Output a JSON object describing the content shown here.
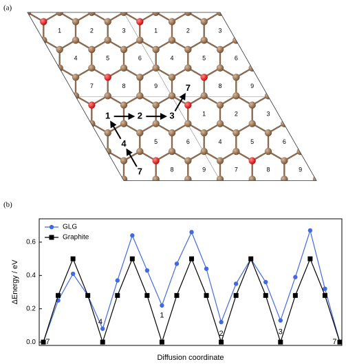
{
  "panel_a": {
    "label": "(a)",
    "cell_numbers": [
      "1",
      "2",
      "3",
      "4",
      "5",
      "6",
      "7",
      "8",
      "9"
    ],
    "path_labels": [
      "1",
      "2",
      "3",
      "4",
      "7"
    ]
  },
  "panel_b_label": "(b)",
  "chart_data": {
    "type": "line",
    "xlabel": "Diffusion coordinate",
    "ylabel": "ΔEnergy / eV",
    "x": [
      0,
      1,
      2,
      3,
      4,
      5,
      6,
      7,
      8,
      9,
      10,
      11,
      12,
      13,
      14,
      15,
      16,
      17,
      18,
      19,
      20
    ],
    "series": [
      {
        "name": "GLG",
        "color": "#4169e1",
        "marker": "circle",
        "values": [
          0,
          0.25,
          0.41,
          0.28,
          0.08,
          0.37,
          0.64,
          0.43,
          0.22,
          0.47,
          0.66,
          0.44,
          0.12,
          0.35,
          0.5,
          0.36,
          0.13,
          0.39,
          0.67,
          0.32,
          0
        ]
      },
      {
        "name": "Graphite",
        "color": "#000000",
        "marker": "square",
        "values": [
          0,
          0.28,
          0.5,
          0.28,
          0,
          0.28,
          0.5,
          0.28,
          0,
          0.28,
          0.5,
          0.28,
          0,
          0.28,
          0.5,
          0.28,
          0,
          0.28,
          0.5,
          0.28,
          0
        ]
      }
    ],
    "xlim": [
      -0.28,
      20.14
    ],
    "ylim": [
      -0.02,
      0.74
    ],
    "yticks": [
      {
        "value": 0,
        "label": "0.0"
      },
      {
        "value": 0.2,
        "label": "0.2"
      },
      {
        "value": 0.4,
        "label": "0.4"
      },
      {
        "value": 0.6,
        "label": "0.6"
      }
    ],
    "legend": "upper left",
    "annotations": [
      {
        "text": "7",
        "x": 0.3,
        "y": 0.0
      },
      {
        "text": "4",
        "x": 3.85,
        "y": 0.12
      },
      {
        "text": "1",
        "x": 8,
        "y": 0.16
      },
      {
        "text": "2",
        "x": 12,
        "y": 0.05
      },
      {
        "text": "3",
        "x": 16,
        "y": 0.06
      },
      {
        "text": "7",
        "x": 19.65,
        "y": 0.0
      }
    ]
  }
}
